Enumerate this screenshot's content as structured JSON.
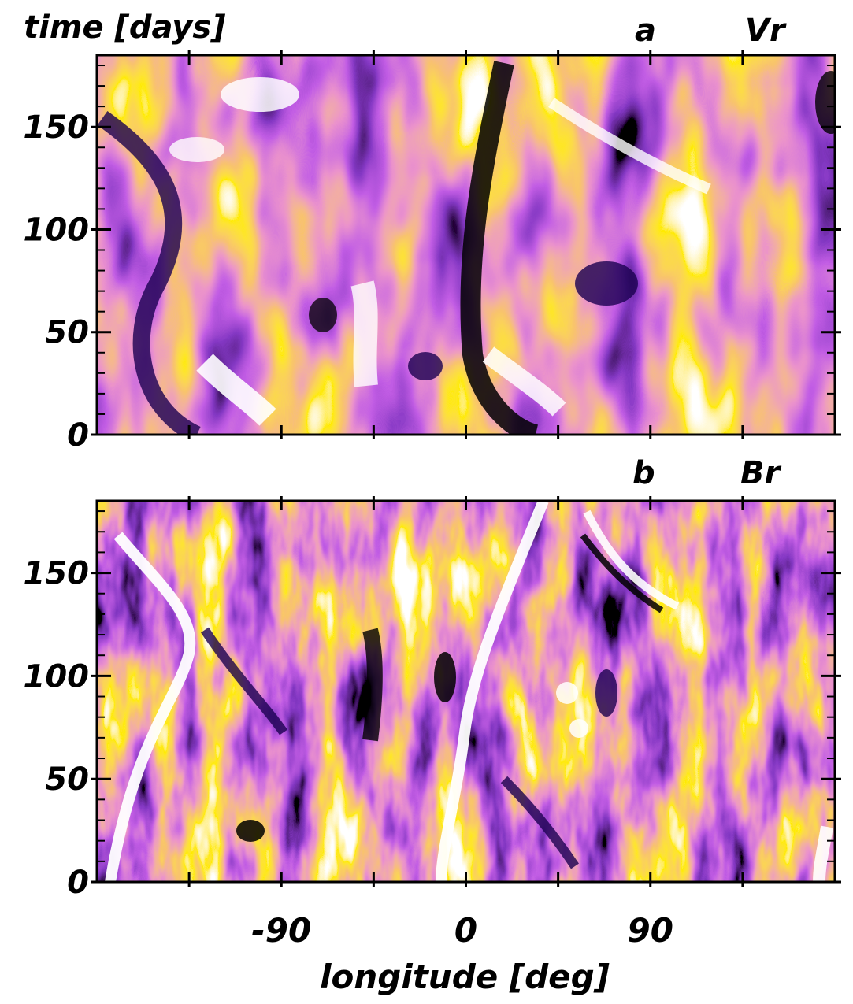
{
  "chart_data": [
    {
      "type": "heatmap",
      "panel_label": "a",
      "quantity": "Vr",
      "ylabel": "time [days]",
      "xlabel": "",
      "xlim": [
        -180,
        180
      ],
      "ylim": [
        0,
        185
      ],
      "yticks": [
        0,
        50,
        100,
        150
      ],
      "ytick_labels": [
        "0",
        "50",
        "100",
        "150"
      ],
      "colormap": [
        "#000000",
        "#3a0a8c",
        "#8a1cc8",
        "#d44a9a",
        "#f08a2a",
        "#ffd400",
        "#ffffff"
      ]
    },
    {
      "type": "heatmap",
      "panel_label": "b",
      "quantity": "Br",
      "ylabel": "",
      "xlabel": "longitude [deg]",
      "xlim": [
        -180,
        180
      ],
      "ylim": [
        0,
        185
      ],
      "xticks": [
        -90,
        0,
        90
      ],
      "xtick_labels": [
        "-90",
        "0",
        "90"
      ],
      "yticks": [
        0,
        50,
        100,
        150
      ],
      "ytick_labels": [
        "0",
        "50",
        "100",
        "150"
      ],
      "colormap": [
        "#000000",
        "#3a0a8c",
        "#8a1cc8",
        "#d44a9a",
        "#f08a2a",
        "#ffd400",
        "#ffffff"
      ]
    }
  ]
}
